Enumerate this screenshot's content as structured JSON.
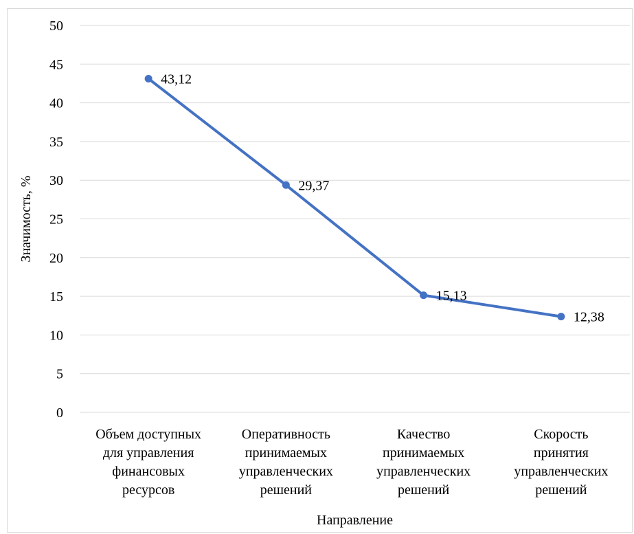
{
  "chart_data": {
    "type": "line",
    "title": "",
    "xlabel": "Направление",
    "ylabel": "Значимость, %",
    "ylim": [
      0,
      50
    ],
    "yticks": [
      0,
      5,
      10,
      15,
      20,
      25,
      30,
      35,
      40,
      45,
      50
    ],
    "grid": true,
    "categories": [
      [
        "Объем доступных",
        "для управления",
        "финансовых",
        "ресурсов"
      ],
      [
        "Оперативность",
        "принимаемых",
        "управленческих",
        "решений"
      ],
      [
        "Качество",
        "принимаемых",
        "управленческих",
        "решений"
      ],
      [
        "Скорость",
        "принятия",
        "управленческих",
        "решений"
      ]
    ],
    "series": [
      {
        "values": [
          43.12,
          29.37,
          15.13,
          12.38
        ],
        "data_labels": [
          "43,12",
          "29,37",
          "15,13",
          "12,38"
        ],
        "color": "#4472c4"
      }
    ]
  }
}
